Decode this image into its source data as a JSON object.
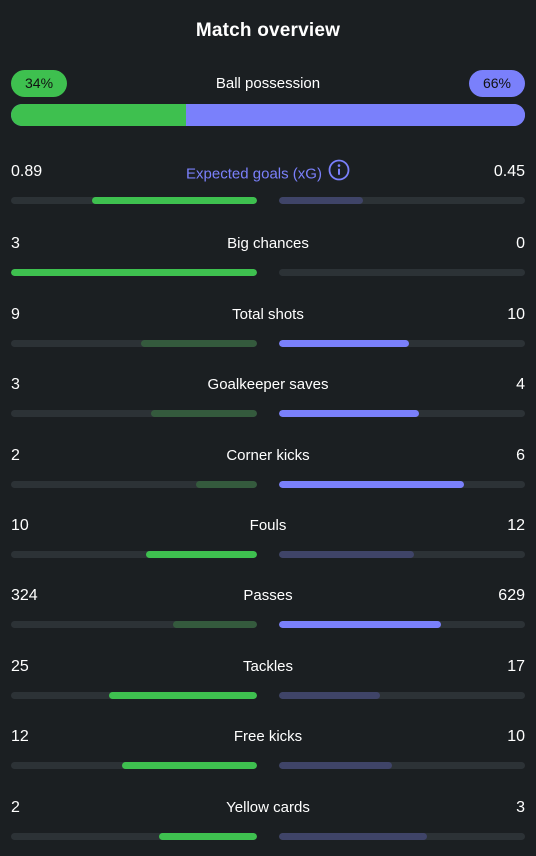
{
  "header": {
    "title": "Match overview"
  },
  "colors": {
    "home": "#3ec04f",
    "home_dim": "#345a3d",
    "away": "#7a80fb",
    "away_dim": "#3f4468"
  },
  "possession": {
    "label": "Ball possession",
    "home_label": "34%",
    "away_label": "66%",
    "home_pct": 34,
    "away_pct": 66
  },
  "stats": [
    {
      "label": "Expected goals (xG)",
      "home": "0.89",
      "away": "0.45",
      "home_frac": 0.67,
      "away_frac": 0.34,
      "winner": "home",
      "home_bright": true,
      "away_bright": false,
      "accent_label": true,
      "icon": "info-icon"
    },
    {
      "label": "Big chances",
      "home": "3",
      "away": "0",
      "home_frac": 1.0,
      "away_frac": 0.0,
      "winner": "home",
      "home_bright": true,
      "away_bright": false
    },
    {
      "label": "Total shots",
      "home": "9",
      "away": "10",
      "home_frac": 0.47,
      "away_frac": 0.53,
      "winner": "away",
      "home_bright": false,
      "away_bright": true
    },
    {
      "label": "Goalkeeper saves",
      "home": "3",
      "away": "4",
      "home_frac": 0.43,
      "away_frac": 0.57,
      "winner": "away",
      "home_bright": false,
      "away_bright": true
    },
    {
      "label": "Corner kicks",
      "home": "2",
      "away": "6",
      "home_frac": 0.25,
      "away_frac": 0.75,
      "winner": "away",
      "home_bright": false,
      "away_bright": true
    },
    {
      "label": "Fouls",
      "home": "10",
      "away": "12",
      "home_frac": 0.45,
      "away_frac": 0.55,
      "winner": "home",
      "home_bright": true,
      "away_bright": false
    },
    {
      "label": "Passes",
      "home": "324",
      "away": "629",
      "home_frac": 0.34,
      "away_frac": 0.66,
      "winner": "away",
      "home_bright": false,
      "away_bright": true
    },
    {
      "label": "Tackles",
      "home": "25",
      "away": "17",
      "home_frac": 0.6,
      "away_frac": 0.41,
      "winner": "home",
      "home_bright": true,
      "away_bright": false
    },
    {
      "label": "Free kicks",
      "home": "12",
      "away": "10",
      "home_frac": 0.55,
      "away_frac": 0.46,
      "winner": "home",
      "home_bright": true,
      "away_bright": false
    },
    {
      "label": "Yellow cards",
      "home": "2",
      "away": "3",
      "home_frac": 0.4,
      "away_frac": 0.6,
      "winner": "home",
      "home_bright": true,
      "away_bright": false
    }
  ]
}
